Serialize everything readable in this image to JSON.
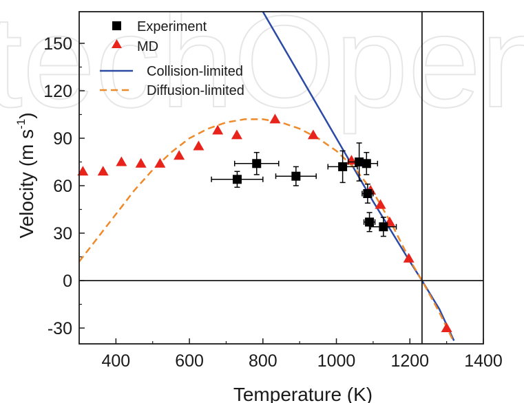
{
  "chart_data": {
    "type": "scatter",
    "title": "",
    "xlabel": "Temperature (K)",
    "ylabel_main": "Velocity (m s",
    "ylabel_sup": "-1",
    "ylabel_close": ")",
    "xlim": [
      300,
      1400
    ],
    "ylim": [
      -40,
      170
    ],
    "xticks": [
      400,
      600,
      800,
      1000,
      1200,
      1400
    ],
    "yticks": [
      -30,
      0,
      30,
      60,
      90,
      120,
      150
    ],
    "grid": false,
    "legend_position": "top-left",
    "reference_lines": {
      "horizontal_y": 0,
      "vertical_x": 1233
    },
    "watermark": "techOpen",
    "colors": {
      "experiment": "#000000",
      "md": "#e8231b",
      "collision": "#2b4aa6",
      "diffusion": "#ef8a2a",
      "axis": "#1a1a1a"
    },
    "series": [
      {
        "name": "Experiment",
        "kind": "errorbar",
        "points": [
          {
            "x": 730,
            "y": 64,
            "xerr": 70,
            "yerr": 5
          },
          {
            "x": 783,
            "y": 74,
            "xerr": 60,
            "yerr": 7
          },
          {
            "x": 890,
            "y": 66,
            "xerr": 55,
            "yerr": 6
          },
          {
            "x": 1017,
            "y": 72,
            "xerr": 40,
            "yerr": 10
          },
          {
            "x": 1062,
            "y": 75,
            "xerr": 30,
            "yerr": 12
          },
          {
            "x": 1082,
            "y": 74,
            "xerr": 30,
            "yerr": 7
          },
          {
            "x": 1085,
            "y": 55,
            "xerr": 15,
            "yerr": 6
          },
          {
            "x": 1090,
            "y": 37,
            "xerr": 15,
            "yerr": 6
          },
          {
            "x": 1128,
            "y": 34,
            "xerr": 35,
            "yerr": 6
          }
        ]
      },
      {
        "name": "MD",
        "kind": "markers",
        "points": [
          {
            "x": 310,
            "y": 69
          },
          {
            "x": 365,
            "y": 69
          },
          {
            "x": 415,
            "y": 75
          },
          {
            "x": 468,
            "y": 74
          },
          {
            "x": 520,
            "y": 74
          },
          {
            "x": 572,
            "y": 79
          },
          {
            "x": 625,
            "y": 85
          },
          {
            "x": 677,
            "y": 95
          },
          {
            "x": 729,
            "y": 92
          },
          {
            "x": 833,
            "y": 102
          },
          {
            "x": 937,
            "y": 92
          },
          {
            "x": 1041,
            "y": 76
          },
          {
            "x": 1093,
            "y": 57
          },
          {
            "x": 1120,
            "y": 48
          },
          {
            "x": 1145,
            "y": 37
          },
          {
            "x": 1197,
            "y": 14
          },
          {
            "x": 1300,
            "y": -30
          }
        ]
      },
      {
        "name": "Collision-limited",
        "kind": "line",
        "points": [
          {
            "x": 800,
            "y": 170
          },
          {
            "x": 900,
            "y": 130
          },
          {
            "x": 1000,
            "y": 90
          },
          {
            "x": 1100,
            "y": 50
          },
          {
            "x": 1200,
            "y": 12
          },
          {
            "x": 1233,
            "y": 0
          },
          {
            "x": 1280,
            "y": -18
          },
          {
            "x": 1320,
            "y": -38
          }
        ]
      },
      {
        "name": "Diffusion-limited",
        "kind": "dashed-line",
        "points": [
          {
            "x": 300,
            "y": 12
          },
          {
            "x": 350,
            "y": 27
          },
          {
            "x": 400,
            "y": 42
          },
          {
            "x": 450,
            "y": 57
          },
          {
            "x": 500,
            "y": 70
          },
          {
            "x": 550,
            "y": 81
          },
          {
            "x": 600,
            "y": 90
          },
          {
            "x": 650,
            "y": 96
          },
          {
            "x": 700,
            "y": 100
          },
          {
            "x": 750,
            "y": 102
          },
          {
            "x": 800,
            "y": 102
          },
          {
            "x": 850,
            "y": 100
          },
          {
            "x": 900,
            "y": 96
          },
          {
            "x": 950,
            "y": 90
          },
          {
            "x": 1000,
            "y": 82
          },
          {
            "x": 1050,
            "y": 71
          },
          {
            "x": 1100,
            "y": 56
          },
          {
            "x": 1150,
            "y": 36
          },
          {
            "x": 1200,
            "y": 13
          },
          {
            "x": 1233,
            "y": 0
          },
          {
            "x": 1280,
            "y": -20
          },
          {
            "x": 1320,
            "y": -39
          }
        ]
      }
    ]
  }
}
